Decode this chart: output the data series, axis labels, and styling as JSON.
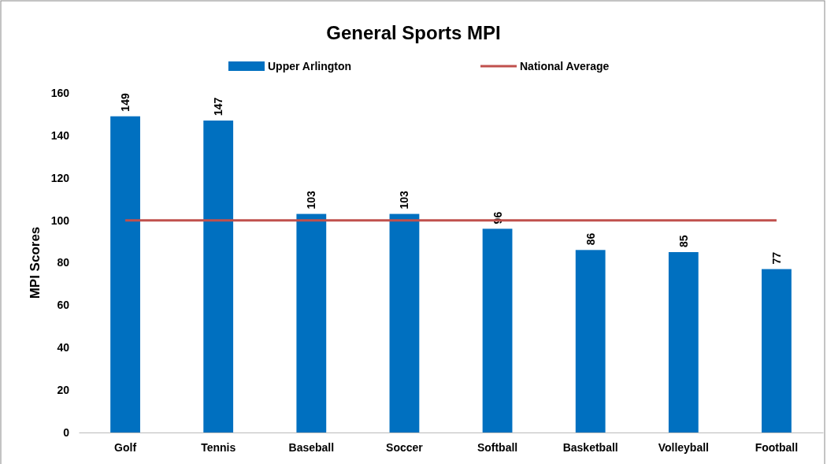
{
  "chart_data": {
    "type": "bar",
    "title": "General Sports MPI",
    "ylabel": "MPI Scores",
    "categories": [
      "Golf",
      "Tennis",
      "Baseball",
      "Soccer",
      "Softball",
      "Basketball",
      "Volleyball",
      "Football"
    ],
    "series": [
      {
        "name": "Upper Arlington",
        "color": "#0070c0",
        "values": [
          149,
          147,
          103,
          103,
          96,
          86,
          85,
          77
        ],
        "value_labels": [
          "149",
          "147",
          "103",
          "103",
          "96",
          "86",
          "85",
          "77"
        ]
      },
      {
        "name": "National Average",
        "type": "line",
        "color": "#c0504d",
        "values": [
          100,
          100,
          100,
          100,
          100,
          100,
          100,
          100
        ]
      }
    ],
    "ylim": [
      0,
      160
    ],
    "yticks": [
      0,
      20,
      40,
      60,
      80,
      100,
      120,
      140,
      160
    ],
    "grid": false,
    "legend": "top",
    "marker": "none",
    "line_style": "solid"
  }
}
